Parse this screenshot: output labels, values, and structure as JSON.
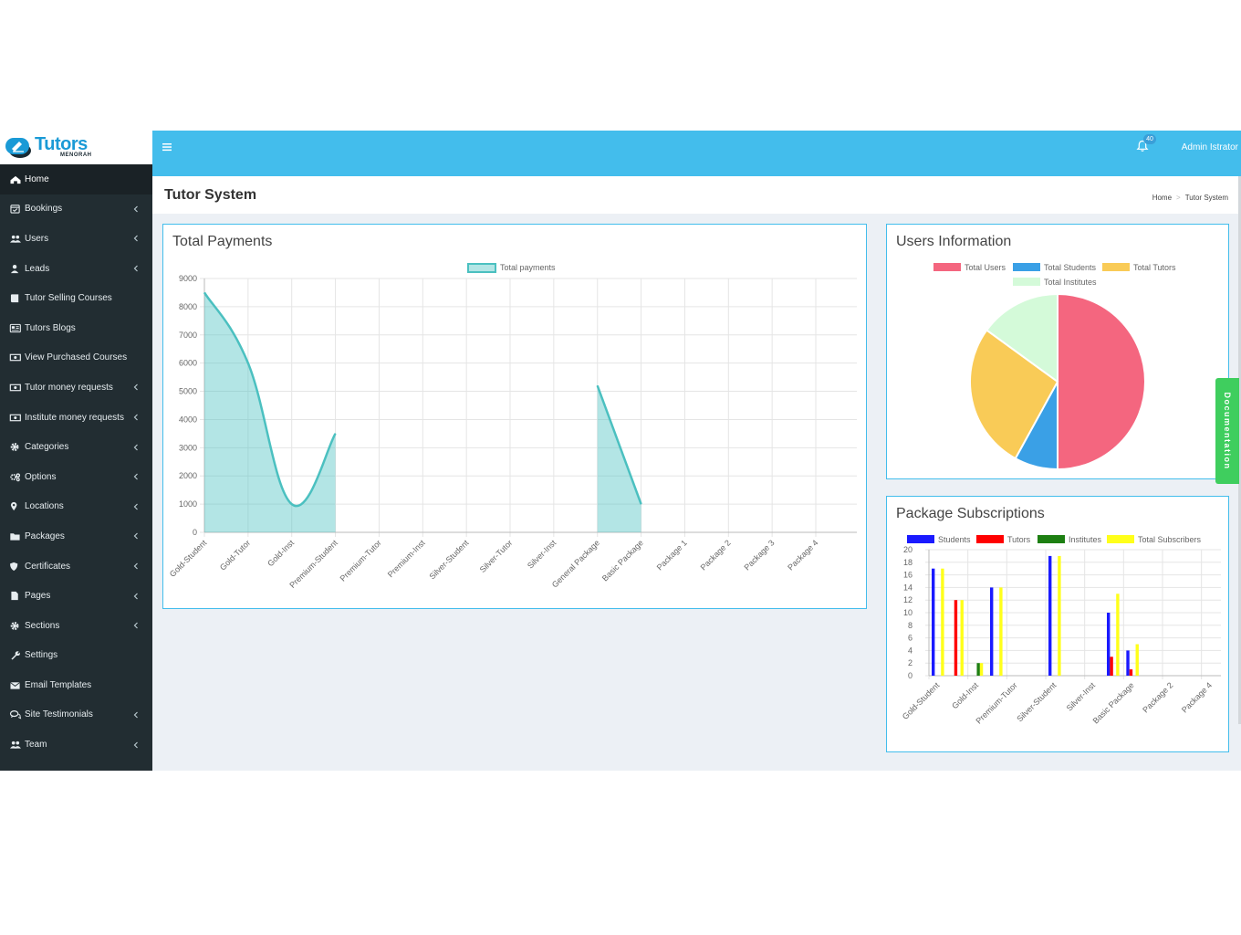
{
  "brand": {
    "logo_text": "Tutors",
    "logo_sub": "MENORAH",
    "logo_color": "#1a9ad6"
  },
  "sidebar": {
    "items": [
      {
        "label": "Home",
        "icon": "dashboard-icon",
        "chevron": false,
        "active": true
      },
      {
        "label": "Bookings",
        "icon": "calendar-check-icon",
        "chevron": true
      },
      {
        "label": "Users",
        "icon": "users-icon",
        "chevron": true
      },
      {
        "label": "Leads",
        "icon": "user-tie-icon",
        "chevron": true
      },
      {
        "label": "Tutor Selling Courses",
        "icon": "book-icon",
        "chevron": false
      },
      {
        "label": "Tutors Blogs",
        "icon": "newspaper-icon",
        "chevron": false
      },
      {
        "label": "View Purchased Courses",
        "icon": "money-bill-icon",
        "chevron": false
      },
      {
        "label": "Tutor money requests",
        "icon": "money-bill-icon",
        "chevron": true
      },
      {
        "label": "Institute money requests",
        "icon": "money-bill-icon",
        "chevron": true
      },
      {
        "label": "Categories",
        "icon": "gear-icon",
        "chevron": true
      },
      {
        "label": "Options",
        "icon": "gears-icon",
        "chevron": true
      },
      {
        "label": "Locations",
        "icon": "map-marker-icon",
        "chevron": true
      },
      {
        "label": "Packages",
        "icon": "folder-icon",
        "chevron": true
      },
      {
        "label": "Certificates",
        "icon": "shield-icon",
        "chevron": true
      },
      {
        "label": "Pages",
        "icon": "file-icon",
        "chevron": true
      },
      {
        "label": "Sections",
        "icon": "gear-icon",
        "chevron": true
      },
      {
        "label": "Settings",
        "icon": "wrench-icon",
        "chevron": false
      },
      {
        "label": "Email Templates",
        "icon": "envelope-icon",
        "chevron": false
      },
      {
        "label": "Site Testimonials",
        "icon": "comments-icon",
        "chevron": true
      },
      {
        "label": "Team",
        "icon": "users-icon",
        "chevron": true
      }
    ]
  },
  "header": {
    "notification_count": "40",
    "user_name": "Admin Istrator",
    "bar_color": "#43bdec"
  },
  "content_header": {
    "title": "Tutor System",
    "breadcrumb": [
      "Home",
      "Tutor System"
    ]
  },
  "payments": {
    "title": "Total Payments",
    "chart_data": {
      "type": "area",
      "categories": [
        "Gold-Student",
        "Gold-Tutor",
        "Gold-Inst",
        "Premium-Student",
        "Premium-Tutor",
        "Premium-Inst",
        "Silver-Student",
        "Silver-Tutor",
        "Silver-Inst",
        "General Package",
        "Basic Package",
        "Package 1",
        "Package 2",
        "Package 3",
        "Package 4"
      ],
      "series": [
        {
          "name": "Total payments",
          "values": [
            8500,
            6000,
            1000,
            3500,
            null,
            null,
            null,
            null,
            null,
            5200,
            1000,
            null,
            null,
            null,
            null
          ],
          "color": "#4bc0c0"
        }
      ],
      "ylim": [
        0,
        9000
      ],
      "yticks": [
        0,
        1000,
        2000,
        3000,
        4000,
        5000,
        6000,
        7000,
        8000,
        9000
      ],
      "legend_position": "top",
      "grid": true
    }
  },
  "users_info": {
    "title": "Users Information",
    "chart_data": {
      "type": "pie",
      "categories": [
        "Total Users",
        "Total Students",
        "Total Tutors",
        "Total Institutes"
      ],
      "values": [
        50,
        8,
        27,
        15
      ],
      "colors": [
        "#f4667f",
        "#3aa0e6",
        "#f9cb57",
        "#d4fad9"
      ],
      "legend_position": "top"
    }
  },
  "packages": {
    "title": "Package Subscriptions",
    "chart_data": {
      "type": "bar",
      "categories": [
        "Gold-Student",
        "Gold-Tutor",
        "Gold-Inst",
        "Premium-Student",
        "Premium-Tutor",
        "Premium-Inst",
        "Silver-Student",
        "Silver-Tutor",
        "Silver-Inst",
        "General Package",
        "Basic Package",
        "Package 1",
        "Package 2",
        "Package 3",
        "Package 4"
      ],
      "xtick_labels": [
        "Gold-Student",
        "Gold-Inst",
        "Premium-Tutor",
        "Silver-Student",
        "Silver-Inst",
        "Basic Package",
        "Package 2",
        "Package 4"
      ],
      "series": [
        {
          "name": "Students",
          "color": "#1a1aff",
          "values": [
            17,
            0,
            0,
            14,
            0,
            0,
            19,
            0,
            0,
            10,
            4,
            0,
            0,
            0,
            0
          ]
        },
        {
          "name": "Tutors",
          "color": "#ff0000",
          "values": [
            0,
            12,
            0,
            0,
            0,
            0,
            0,
            0,
            0,
            3,
            1,
            0,
            0,
            0,
            0
          ]
        },
        {
          "name": "Institutes",
          "color": "#1d7f12",
          "values": [
            0,
            0,
            2,
            0,
            0,
            0,
            0,
            0,
            0,
            0,
            0,
            0,
            0,
            0,
            0
          ]
        },
        {
          "name": "Total Subscribers",
          "color": "#ffff1a",
          "values": [
            17,
            12,
            2,
            14,
            0,
            0,
            19,
            0,
            0,
            13,
            5,
            0,
            0,
            0,
            0
          ]
        }
      ],
      "ylim": [
        0,
        20
      ],
      "yticks": [
        0,
        2,
        4,
        6,
        8,
        10,
        12,
        14,
        16,
        18,
        20
      ],
      "legend_position": "top",
      "grid": true
    }
  },
  "documentation_tab": {
    "label": "Documentation",
    "color": "#3fce5e"
  }
}
